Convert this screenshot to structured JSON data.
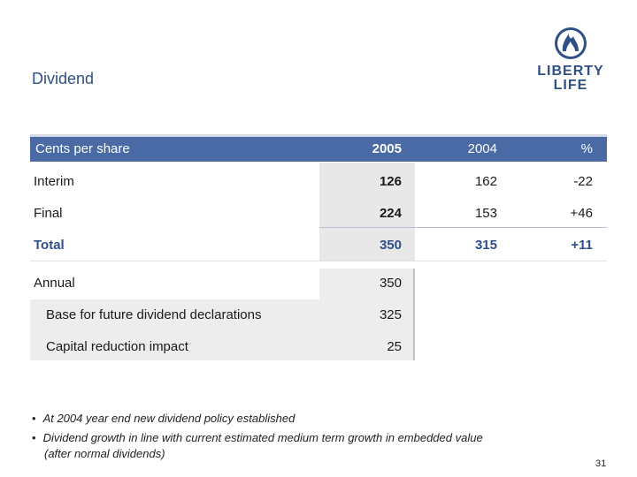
{
  "title": "Dividend",
  "logo": {
    "line1": "LIBERTY",
    "line2": "LIFE",
    "icon": "flame-shield-icon"
  },
  "table": {
    "headers": [
      "Cents per share",
      "2005",
      "2004",
      "%"
    ],
    "rows": [
      {
        "label": "Interim",
        "v2005": "126",
        "v2004": "162",
        "pct": "-22"
      },
      {
        "label": "Final",
        "v2005": "224",
        "v2004": "153",
        "pct": "+46"
      },
      {
        "label": "Total",
        "v2005": "350",
        "v2004": "315",
        "pct": "+11"
      }
    ],
    "annual": {
      "label": "Annual",
      "v2005": "350",
      "subrows": [
        {
          "label": "Base for future dividend declarations",
          "v2005": "325"
        },
        {
          "label": "Capital reduction impact",
          "v2005": "25"
        }
      ]
    }
  },
  "bullets": [
    "At 2004 year end new dividend policy established",
    "Dividend growth in line with current estimated medium term growth in embedded value",
    "(after normal dividends)"
  ],
  "page_number": "31",
  "colors": {
    "accent": "#4a6aa5",
    "title": "#2f4f87",
    "shade": "#e8e8e8"
  }
}
